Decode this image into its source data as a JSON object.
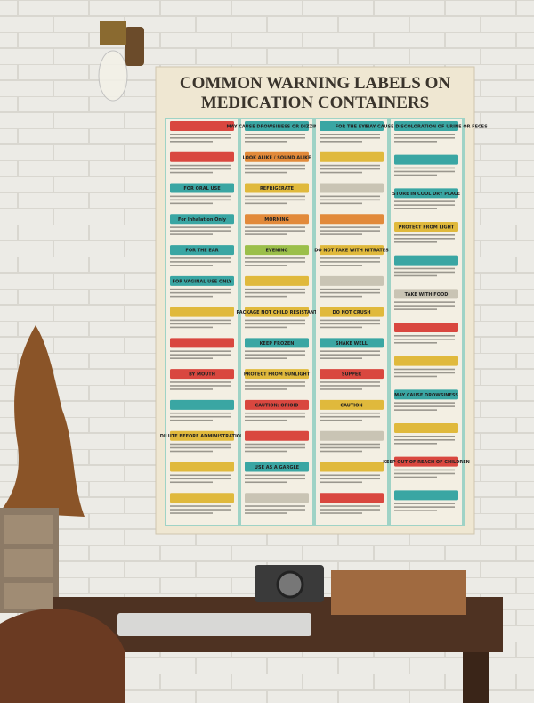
{
  "poster": {
    "title": [
      "COMMON WARNING LABELS ON",
      "MEDICATION CONTAINERS"
    ],
    "columns": [
      [
        {
          "color": "#d9473f"
        },
        {
          "color": "#d9473f"
        },
        {
          "label": "FOR ORAL USE",
          "color": "#3aa6a3"
        },
        {
          "label": "For Inhalation Only",
          "color": "#3aa6a3"
        },
        {
          "label": "FOR THE EAR",
          "color": "#3aa6a3"
        },
        {
          "label": "FOR VAGINAL USE ONLY",
          "color": "#3aa6a3"
        },
        {
          "color": "#e0b93c"
        },
        {
          "color": "#d9473f"
        },
        {
          "label": "BY MOUTH",
          "color": "#d9473f"
        },
        {
          "color": "#3aa6a3"
        },
        {
          "label": "DILUTE BEFORE ADMINISTRATION",
          "color": "#e0b93c"
        },
        {
          "color": "#e0b93c"
        },
        {
          "color": "#e0b93c"
        }
      ],
      [
        {
          "label": "MAY CAUSE DROWSINESS OR DIZZINESS",
          "color": "#3aa6a3"
        },
        {
          "label": "LOOK ALIKE / SOUND ALIKE",
          "color": "#e28a3a"
        },
        {
          "label": "REFRIGERATE",
          "color": "#e0b93c"
        },
        {
          "label": "MORNING",
          "color": "#e28a3a"
        },
        {
          "label": "EVENING",
          "color": "#9bbf4a"
        },
        {
          "color": "#e0b93c"
        },
        {
          "label": "PACKAGE NOT CHILD RESISTANT",
          "color": "#e0b93c"
        },
        {
          "label": "KEEP FROZEN",
          "color": "#3aa6a3"
        },
        {
          "label": "PROTECT FROM SUNLIGHT",
          "color": "#e0b93c"
        },
        {
          "label": "CAUTION: OPIOID",
          "color": "#d9473f"
        },
        {
          "color": "#d9473f"
        },
        {
          "label": "USE AS A GARGLE",
          "color": "#3aa6a3"
        },
        {
          "color": "#c9c4b4"
        }
      ],
      [
        {
          "label": "FOR THE EYE",
          "color": "#3aa6a3"
        },
        {
          "color": "#e0b93c"
        },
        {
          "color": "#c9c4b4"
        },
        {
          "color": "#e28a3a"
        },
        {
          "label": "DO NOT TAKE WITH NITRATES",
          "color": "#e0b93c"
        },
        {
          "color": "#c9c4b4"
        },
        {
          "label": "DO NOT CRUSH",
          "color": "#e0b93c"
        },
        {
          "label": "SHAKE WELL",
          "color": "#3aa6a3"
        },
        {
          "label": "SUPPER",
          "color": "#d9473f"
        },
        {
          "label": "CAUTION",
          "color": "#e0b93c"
        },
        {
          "color": "#c9c4b4"
        },
        {
          "color": "#e0b93c"
        },
        {
          "color": "#d9473f"
        }
      ],
      [
        {
          "label": "MAY CAUSE DISCOLORATION OF URINE OR FECES",
          "color": "#3aa6a3"
        },
        {
          "color": "#3aa6a3"
        },
        {
          "label": "STORE IN COOL DRY PLACE",
          "color": "#3aa6a3"
        },
        {
          "label": "PROTECT FROM LIGHT",
          "color": "#e0b93c"
        },
        {
          "color": "#3aa6a3"
        },
        {
          "label": "TAKE WITH FOOD",
          "color": "#c9c4b4"
        },
        {
          "color": "#d9473f"
        },
        {
          "color": "#e0b93c"
        },
        {
          "label": "MAY CAUSE DROWSINESS",
          "color": "#3aa6a3"
        },
        {
          "color": "#e0b93c"
        },
        {
          "label": "KEEP OUT OF REACH OF CHILDREN",
          "color": "#d9473f"
        },
        {
          "color": "#3aa6a3"
        }
      ]
    ]
  }
}
